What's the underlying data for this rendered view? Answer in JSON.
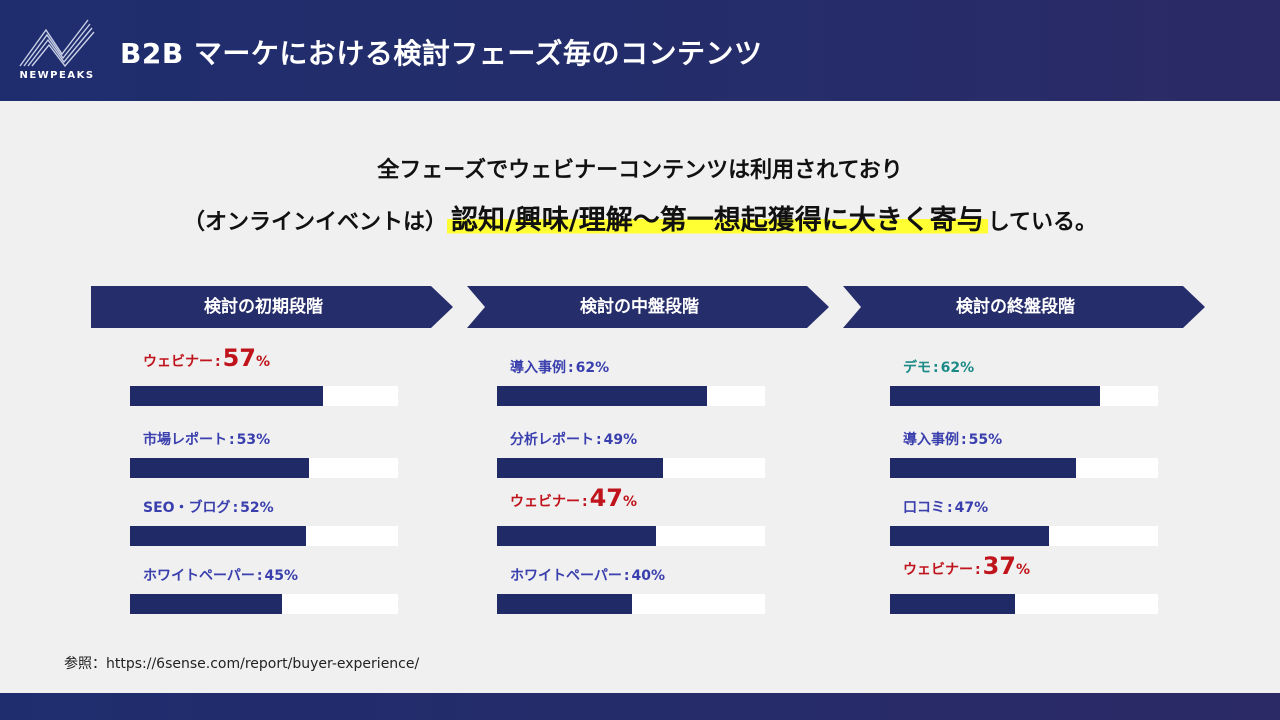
{
  "header": {
    "logo_text": "NEWPEAKS",
    "title": "B2B マーケにおける検討フェーズ毎のコンテンツ",
    "bg_color": "#252d6a"
  },
  "headline": {
    "line1": "全フェーズでウェビナーコンテンツは利用されており",
    "line2_prefix": "（オンラインイベントは）",
    "line2_highlight": "認知/興味/理解〜第一想起獲得に大きく寄与",
    "line2_suffix": "している。",
    "highlight_color": "#ffff33"
  },
  "stages": [
    {
      "label": "検討の初期段階",
      "items": [
        {
          "name": "ウェビナー",
          "sep": ":",
          "value": 57,
          "display": "57",
          "unit": "%",
          "highlight": true
        },
        {
          "name": "市場レポート",
          "sep": ":",
          "value": 53,
          "display": "53%",
          "highlight": false
        },
        {
          "name": "SEO・ブログ",
          "sep": ":",
          "value": 52,
          "display": "52%",
          "highlight": false
        },
        {
          "name": "ホワイトペーパー",
          "sep": ":",
          "value": 45,
          "display": "45%",
          "highlight": false
        }
      ]
    },
    {
      "label": "検討の中盤段階",
      "items": [
        {
          "name": "導入事例",
          "sep": ":",
          "value": 62,
          "display": "62%",
          "highlight": false
        },
        {
          "name": "分析レポート",
          "sep": ":",
          "value": 49,
          "display": "49%",
          "highlight": false
        },
        {
          "name": "ウェビナー",
          "sep": ":",
          "value": 47,
          "display": "47",
          "unit": "%",
          "highlight": true
        },
        {
          "name": "ホワイトペーパー",
          "sep": ":",
          "value": 40,
          "display": "40%",
          "highlight": false
        }
      ]
    },
    {
      "label": "検討の終盤段階",
      "items": [
        {
          "name": "デモ",
          "sep": ":",
          "value": 62,
          "display": "62%",
          "highlight": false,
          "teal": true
        },
        {
          "name": "導入事例",
          "sep": ":",
          "value": 55,
          "display": "55%",
          "highlight": false
        },
        {
          "name": "口コミ",
          "sep": ":",
          "value": 47,
          "display": "47%",
          "highlight": false
        },
        {
          "name": "ウェビナー",
          "sep": ":",
          "value": 37,
          "display": "37",
          "unit": "%",
          "highlight": true
        }
      ]
    }
  ],
  "reference": "参照：https://6sense.com/report/buyer-experience/",
  "colors": {
    "bar": "#1f2a66",
    "label": "#3a3fae",
    "highlight": "#c0141c",
    "teal": "#1c8b87"
  }
}
